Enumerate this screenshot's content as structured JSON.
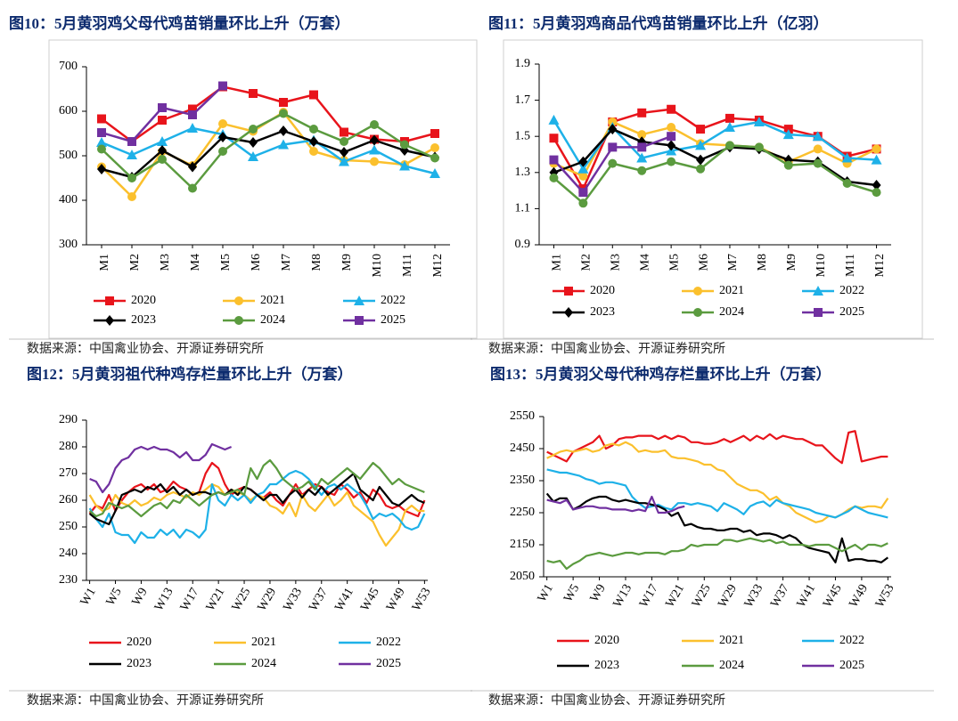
{
  "chart_data": [
    {
      "type": "line",
      "title": "图10：5月黄羽鸡父母代鸡苗销量环比上升（万套）",
      "source": "数据来源：中国禽业协会、开源证券研究所",
      "categories": [
        "M1",
        "M2",
        "M3",
        "M4",
        "M5",
        "M6",
        "M7",
        "M8",
        "M9",
        "M10",
        "M11",
        "M12"
      ],
      "ylim": [
        300,
        700
      ],
      "yticks": [
        300,
        400,
        500,
        600,
        700
      ],
      "series": [
        {
          "name": "2020",
          "color": "#e8141b",
          "marker": "square",
          "values": [
            583,
            532,
            580,
            605,
            655,
            640,
            620,
            637,
            553,
            537,
            532,
            550
          ]
        },
        {
          "name": "2021",
          "color": "#fbc02d",
          "marker": "circle",
          "values": [
            475,
            408,
            510,
            478,
            572,
            555,
            598,
            510,
            490,
            487,
            480,
            518
          ]
        },
        {
          "name": "2022",
          "color": "#1eb1e8",
          "marker": "triangle",
          "values": [
            530,
            502,
            532,
            562,
            548,
            498,
            525,
            535,
            487,
            513,
            477,
            460
          ]
        },
        {
          "name": "2023",
          "color": "#000000",
          "marker": "diamond",
          "values": [
            470,
            452,
            512,
            475,
            542,
            530,
            556,
            532,
            508,
            535,
            512,
            497
          ]
        },
        {
          "name": "2024",
          "color": "#5b9b3f",
          "marker": "circle",
          "values": [
            515,
            450,
            492,
            427,
            510,
            560,
            595,
            560,
            532,
            570,
            525,
            495
          ]
        },
        {
          "name": "2025",
          "color": "#7030a0",
          "marker": "square",
          "values": [
            552,
            532,
            608,
            592,
            657,
            null,
            null,
            null,
            null,
            null,
            null,
            null
          ]
        }
      ]
    },
    {
      "type": "line",
      "title": "图11：5月黄羽鸡商品代鸡苗销量环比上升（亿羽）",
      "source": "数据来源：中国禽业协会、开源证券研究所",
      "categories": [
        "M1",
        "M2",
        "M3",
        "M4",
        "M5",
        "M6",
        "M7",
        "M8",
        "M9",
        "M10",
        "M11",
        "M12"
      ],
      "ylim": [
        0.9,
        1.9
      ],
      "yticks": [
        0.9,
        1.1,
        1.3,
        1.5,
        1.7,
        1.9
      ],
      "series": [
        {
          "name": "2020",
          "color": "#e8141b",
          "marker": "square",
          "values": [
            1.49,
            1.21,
            1.58,
            1.63,
            1.65,
            1.54,
            1.6,
            1.59,
            1.54,
            1.5,
            1.39,
            1.43
          ]
        },
        {
          "name": "2021",
          "color": "#fbc02d",
          "marker": "circle",
          "values": [
            1.35,
            1.28,
            1.58,
            1.51,
            1.55,
            1.46,
            1.45,
            1.44,
            1.36,
            1.43,
            1.35,
            1.43
          ]
        },
        {
          "name": "2022",
          "color": "#1eb1e8",
          "marker": "triangle",
          "values": [
            1.59,
            1.32,
            1.55,
            1.38,
            1.42,
            1.45,
            1.55,
            1.58,
            1.51,
            1.5,
            1.38,
            1.37
          ]
        },
        {
          "name": "2023",
          "color": "#000000",
          "marker": "diamond",
          "values": [
            1.3,
            1.36,
            1.54,
            1.47,
            1.45,
            1.37,
            1.44,
            1.43,
            1.37,
            1.36,
            1.25,
            1.23
          ]
        },
        {
          "name": "2024",
          "color": "#5b9b3f",
          "marker": "circle",
          "values": [
            1.27,
            1.13,
            1.35,
            1.31,
            1.36,
            1.32,
            1.45,
            1.44,
            1.34,
            1.35,
            1.24,
            1.19
          ]
        },
        {
          "name": "2025",
          "color": "#7030a0",
          "marker": "square",
          "values": [
            1.37,
            1.19,
            1.44,
            1.44,
            1.5,
            null,
            null,
            null,
            null,
            null,
            null,
            null
          ]
        }
      ]
    },
    {
      "type": "line",
      "title": "图12：5月黄羽祖代种鸡存栏量环比上升（万套）",
      "source": "数据来源：中国禽业协会、开源证券研究所",
      "categories": [
        "W1",
        null,
        null,
        null,
        "W5",
        null,
        null,
        null,
        "W9",
        null,
        null,
        null,
        "W13",
        null,
        null,
        null,
        "W17",
        null,
        null,
        null,
        "W21",
        null,
        null,
        null,
        "W25",
        null,
        null,
        null,
        "W29",
        null,
        null,
        null,
        "W33",
        null,
        null,
        null,
        "W37",
        null,
        null,
        null,
        "W41",
        null,
        null,
        null,
        "W45",
        null,
        null,
        null,
        "W49",
        null,
        null,
        null,
        "W53"
      ],
      "ylim": [
        230,
        290
      ],
      "yticks": [
        230,
        240,
        250,
        260,
        270,
        280,
        290
      ],
      "series": [
        {
          "name": "2020",
          "color": "#e8141b",
          "values": [
            255,
            258,
            257,
            262,
            256,
            260,
            263,
            265,
            266,
            264,
            266,
            263,
            264,
            267,
            265,
            264,
            262,
            263,
            270,
            274,
            272,
            266,
            262,
            264,
            265,
            264,
            262,
            261,
            263,
            260,
            258,
            262,
            266,
            262,
            264,
            266,
            265,
            263,
            262,
            266,
            264,
            261,
            263,
            259,
            264,
            262,
            258,
            257,
            258,
            256,
            255,
            254,
            260
          ]
        },
        {
          "name": "2021",
          "color": "#fbc02d",
          "values": [
            262,
            258,
            256,
            257,
            262,
            259,
            258,
            260,
            258,
            259,
            261,
            260,
            262,
            263,
            262,
            261,
            263,
            262,
            264,
            266,
            265,
            262,
            264,
            263,
            262,
            260,
            262,
            261,
            258,
            257,
            255,
            259,
            254,
            262,
            258,
            256,
            259,
            262,
            258,
            260,
            263,
            258,
            256,
            254,
            252,
            247,
            243,
            246,
            249,
            256,
            258,
            256,
            256
          ]
        },
        {
          "name": "2022",
          "color": "#1eb1e8",
          "values": [
            257,
            253,
            250,
            255,
            248,
            247,
            247,
            244,
            248,
            246,
            246,
            249,
            247,
            249,
            246,
            249,
            248,
            246,
            249,
            266,
            260,
            258,
            262,
            260,
            262,
            259,
            262,
            263,
            266,
            266,
            268,
            270,
            271,
            270,
            268,
            265,
            262,
            265,
            266,
            264,
            266,
            264,
            262,
            258,
            253,
            255,
            254,
            255,
            253,
            250,
            249,
            250,
            255
          ]
        },
        {
          "name": "2023",
          "color": "#000000",
          "values": [
            255,
            253,
            252,
            251,
            256,
            262,
            263,
            264,
            263,
            265,
            264,
            266,
            263,
            265,
            262,
            264,
            262,
            263,
            263,
            262,
            263,
            262,
            264,
            262,
            265,
            264,
            262,
            260,
            262,
            262,
            259,
            262,
            264,
            261,
            264,
            262,
            265,
            262,
            264,
            266,
            268,
            270,
            264,
            262,
            260,
            265,
            262,
            259,
            258,
            260,
            262,
            260,
            259
          ]
        },
        {
          "name": "2024",
          "color": "#5b9b3f",
          "values": [
            256,
            254,
            255,
            259,
            258,
            257,
            258,
            256,
            254,
            256,
            258,
            259,
            257,
            260,
            259,
            262,
            260,
            258,
            260,
            262,
            263,
            262,
            263,
            264,
            262,
            272,
            268,
            273,
            275,
            272,
            268,
            266,
            264,
            265,
            267,
            264,
            268,
            266,
            268,
            270,
            272,
            270,
            268,
            271,
            274,
            272,
            269,
            266,
            268,
            266,
            265,
            264,
            263
          ]
        },
        {
          "name": "2025",
          "color": "#7030a0",
          "values": [
            268,
            267,
            263,
            266,
            272,
            275,
            276,
            279,
            280,
            279,
            280,
            279,
            279,
            278,
            276,
            278,
            275,
            275,
            277,
            281,
            280,
            279,
            280,
            null,
            null,
            null,
            null,
            null,
            null,
            null,
            null,
            null,
            null,
            null,
            null,
            null,
            null,
            null,
            null,
            null,
            null,
            null,
            null,
            null,
            null,
            null,
            null,
            null,
            null,
            null,
            null,
            null,
            null
          ]
        }
      ]
    },
    {
      "type": "line",
      "title": "图13：5月黄羽父母代种鸡存栏量环比上升（万套）",
      "source": "数据来源：中国禽业协会、开源证券研究所",
      "categories": [
        "W1",
        null,
        null,
        null,
        "W5",
        null,
        null,
        null,
        "W9",
        null,
        null,
        null,
        "W13",
        null,
        null,
        null,
        "W17",
        null,
        null,
        null,
        "W21",
        null,
        null,
        null,
        "W25",
        null,
        null,
        null,
        "W29",
        null,
        null,
        null,
        "W33",
        null,
        null,
        null,
        "W37",
        null,
        null,
        null,
        "W41",
        null,
        null,
        null,
        "W45",
        null,
        null,
        null,
        "W49",
        null,
        null,
        null,
        "W53"
      ],
      "ylim": [
        2050,
        2550
      ],
      "yticks": [
        2050,
        2150,
        2250,
        2350,
        2450,
        2550
      ],
      "series": [
        {
          "name": "2020",
          "color": "#e8141b",
          "values": [
            2440,
            2430,
            2420,
            2410,
            2440,
            2450,
            2460,
            2470,
            2490,
            2450,
            2460,
            2480,
            2485,
            2485,
            2490,
            2490,
            2490,
            2480,
            2490,
            2480,
            2490,
            2485,
            2470,
            2470,
            2465,
            2465,
            2470,
            2480,
            2470,
            2480,
            2490,
            2475,
            2490,
            2480,
            2495,
            2480,
            2490,
            2485,
            2480,
            2480,
            2470,
            2460,
            2460,
            2440,
            2420,
            2405,
            2500,
            2505,
            2410,
            2415,
            2420,
            2425,
            2425
          ]
        },
        {
          "name": "2021",
          "color": "#fbc02d",
          "values": [
            2420,
            2430,
            2440,
            2445,
            2440,
            2445,
            2450,
            2440,
            2445,
            2460,
            2465,
            2460,
            2470,
            2460,
            2440,
            2445,
            2440,
            2440,
            2445,
            2425,
            2420,
            2420,
            2415,
            2410,
            2400,
            2400,
            2385,
            2380,
            2360,
            2340,
            2330,
            2320,
            2320,
            2310,
            2290,
            2300,
            2280,
            2270,
            2250,
            2240,
            2230,
            2220,
            2225,
            2240,
            2235,
            2245,
            2260,
            2270,
            2265,
            2270,
            2270,
            2265,
            2295
          ]
        },
        {
          "name": "2022",
          "color": "#1eb1e8",
          "values": [
            2385,
            2380,
            2375,
            2375,
            2370,
            2365,
            2355,
            2350,
            2340,
            2345,
            2345,
            2340,
            2335,
            2300,
            2280,
            2265,
            2270,
            2275,
            2265,
            2260,
            2280,
            2280,
            2275,
            2280,
            2275,
            2270,
            2255,
            2280,
            2270,
            2260,
            2245,
            2270,
            2280,
            2285,
            2270,
            2290,
            2280,
            2275,
            2270,
            2265,
            2260,
            2250,
            2245,
            2240,
            2235,
            2245,
            2255,
            2270,
            2260,
            2250,
            2245,
            2240,
            2235
          ]
        },
        {
          "name": "2023",
          "color": "#000000",
          "values": [
            2310,
            2285,
            2295,
            2295,
            2260,
            2270,
            2285,
            2295,
            2300,
            2300,
            2290,
            2285,
            2290,
            2285,
            2280,
            2280,
            2275,
            2270,
            2260,
            2240,
            2250,
            2210,
            2215,
            2205,
            2200,
            2200,
            2195,
            2195,
            2200,
            2200,
            2190,
            2195,
            2180,
            2185,
            2185,
            2180,
            2170,
            2180,
            2170,
            2150,
            2140,
            2135,
            2130,
            2125,
            2095,
            2170,
            2100,
            2105,
            2105,
            2100,
            2100,
            2095,
            2110
          ]
        },
        {
          "name": "2024",
          "color": "#5b9b3f",
          "values": [
            2100,
            2095,
            2100,
            2075,
            2090,
            2100,
            2115,
            2120,
            2125,
            2120,
            2115,
            2120,
            2125,
            2125,
            2120,
            2125,
            2125,
            2125,
            2120,
            2130,
            2130,
            2135,
            2150,
            2145,
            2150,
            2150,
            2150,
            2165,
            2165,
            2160,
            2165,
            2170,
            2165,
            2160,
            2165,
            2155,
            2160,
            2150,
            2150,
            2150,
            2145,
            2150,
            2150,
            2150,
            2140,
            2130,
            2140,
            2150,
            2135,
            2150,
            2150,
            2145,
            2155
          ]
        },
        {
          "name": "2025",
          "color": "#7030a0",
          "values": [
            2290,
            2285,
            2280,
            2290,
            2260,
            2265,
            2270,
            2270,
            2265,
            2265,
            2260,
            2260,
            2260,
            2255,
            2260,
            2255,
            2300,
            2250,
            2250,
            2255,
            2265,
            2270,
            null,
            null,
            null,
            null,
            null,
            null,
            null,
            null,
            null,
            null,
            null,
            null,
            null,
            null,
            null,
            null,
            null,
            null,
            null,
            null,
            null,
            null,
            null,
            null,
            null,
            null,
            null,
            null,
            null,
            null,
            null
          ]
        }
      ]
    }
  ]
}
